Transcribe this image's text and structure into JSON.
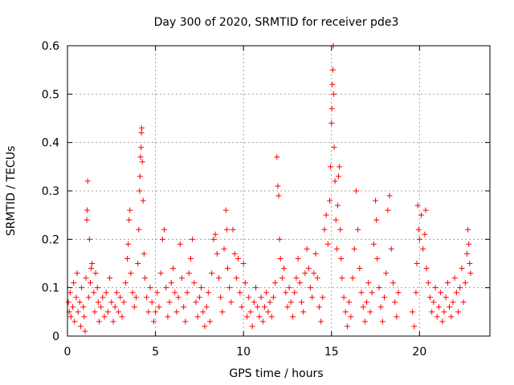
{
  "chart_data": {
    "type": "scatter",
    "title": "Day 300 of 2020, SRMTID for receiver pde3",
    "xlabel": "GPS time / hours",
    "ylabel": "SRMTID / TECUs",
    "xlim": [
      0,
      24
    ],
    "ylim": [
      0,
      0.6
    ],
    "x_ticks": [
      0,
      5,
      10,
      15,
      20
    ],
    "x_tick_labels": [
      "0",
      "5",
      "10",
      "15",
      "20"
    ],
    "y_ticks": [
      0,
      0.1,
      0.2,
      0.3,
      0.4,
      0.5,
      0.6
    ],
    "y_tick_labels": [
      "0",
      "0.1",
      "0.2",
      "0.3",
      "0.4",
      "0.5",
      "0.6"
    ],
    "grid": true,
    "marker": "+",
    "marker_color": "#ff0000",
    "series": [
      {
        "name": "SRMTID",
        "points": [
          [
            0.05,
            0.07
          ],
          [
            0.1,
            0.05
          ],
          [
            0.15,
            0.09
          ],
          [
            0.2,
            0.04
          ],
          [
            0.3,
            0.06
          ],
          [
            0.35,
            0.11
          ],
          [
            0.4,
            0.03
          ],
          [
            0.5,
            0.08
          ],
          [
            0.55,
            0.13
          ],
          [
            0.6,
            0.05
          ],
          [
            0.7,
            0.07
          ],
          [
            0.75,
            0.02
          ],
          [
            0.8,
            0.1
          ],
          [
            0.9,
            0.06
          ],
          [
            0.95,
            0.04
          ],
          [
            1.0,
            0.01
          ],
          [
            1.05,
            0.12
          ],
          [
            1.1,
            0.24
          ],
          [
            1.12,
            0.26
          ],
          [
            1.15,
            0.32
          ],
          [
            1.2,
            0.08
          ],
          [
            1.25,
            0.2
          ],
          [
            1.3,
            0.11
          ],
          [
            1.35,
            0.14
          ],
          [
            1.4,
            0.15
          ],
          [
            1.5,
            0.09
          ],
          [
            1.55,
            0.05
          ],
          [
            1.6,
            0.13
          ],
          [
            1.7,
            0.1
          ],
          [
            1.75,
            0.07
          ],
          [
            1.8,
            0.03
          ],
          [
            1.9,
            0.06
          ],
          [
            2.0,
            0.08
          ],
          [
            2.1,
            0.04
          ],
          [
            2.2,
            0.09
          ],
          [
            2.3,
            0.05
          ],
          [
            2.4,
            0.12
          ],
          [
            2.5,
            0.07
          ],
          [
            2.6,
            0.03
          ],
          [
            2.7,
            0.06
          ],
          [
            2.8,
            0.09
          ],
          [
            2.9,
            0.05
          ],
          [
            3.0,
            0.08
          ],
          [
            3.1,
            0.04
          ],
          [
            3.2,
            0.07
          ],
          [
            3.3,
            0.11
          ],
          [
            3.4,
            0.16
          ],
          [
            3.45,
            0.19
          ],
          [
            3.5,
            0.24
          ],
          [
            3.55,
            0.26
          ],
          [
            3.6,
            0.13
          ],
          [
            3.7,
            0.09
          ],
          [
            3.8,
            0.06
          ],
          [
            3.9,
            0.08
          ],
          [
            4.0,
            0.15
          ],
          [
            4.05,
            0.22
          ],
          [
            4.1,
            0.3
          ],
          [
            4.12,
            0.33
          ],
          [
            4.15,
            0.37
          ],
          [
            4.18,
            0.39
          ],
          [
            4.2,
            0.42
          ],
          [
            4.22,
            0.43
          ],
          [
            4.25,
            0.36
          ],
          [
            4.3,
            0.28
          ],
          [
            4.35,
            0.17
          ],
          [
            4.4,
            0.12
          ],
          [
            4.5,
            0.08
          ],
          [
            4.6,
            0.05
          ],
          [
            4.7,
            0.1
          ],
          [
            4.8,
            0.07
          ],
          [
            4.9,
            0.03
          ],
          [
            5.0,
            0.05
          ],
          [
            5.1,
            0.09
          ],
          [
            5.2,
            0.06
          ],
          [
            5.3,
            0.13
          ],
          [
            5.4,
            0.2
          ],
          [
            5.5,
            0.22
          ],
          [
            5.6,
            0.1
          ],
          [
            5.7,
            0.04
          ],
          [
            5.8,
            0.07
          ],
          [
            5.9,
            0.11
          ],
          [
            6.0,
            0.14
          ],
          [
            6.1,
            0.09
          ],
          [
            6.2,
            0.05
          ],
          [
            6.3,
            0.08
          ],
          [
            6.4,
            0.19
          ],
          [
            6.5,
            0.12
          ],
          [
            6.6,
            0.06
          ],
          [
            6.7,
            0.03
          ],
          [
            6.8,
            0.09
          ],
          [
            6.9,
            0.13
          ],
          [
            7.0,
            0.16
          ],
          [
            7.1,
            0.2
          ],
          [
            7.2,
            0.11
          ],
          [
            7.3,
            0.07
          ],
          [
            7.4,
            0.04
          ],
          [
            7.5,
            0.08
          ],
          [
            7.6,
            0.1
          ],
          [
            7.7,
            0.05
          ],
          [
            7.8,
            0.02
          ],
          [
            7.9,
            0.06
          ],
          [
            8.0,
            0.09
          ],
          [
            8.1,
            0.03
          ],
          [
            8.2,
            0.13
          ],
          [
            8.3,
            0.2
          ],
          [
            8.4,
            0.21
          ],
          [
            8.5,
            0.17
          ],
          [
            8.6,
            0.12
          ],
          [
            8.7,
            0.08
          ],
          [
            8.8,
            0.05
          ],
          [
            8.9,
            0.18
          ],
          [
            9.0,
            0.26
          ],
          [
            9.05,
            0.22
          ],
          [
            9.1,
            0.14
          ],
          [
            9.2,
            0.1
          ],
          [
            9.3,
            0.07
          ],
          [
            9.4,
            0.22
          ],
          [
            9.5,
            0.17
          ],
          [
            9.6,
            0.12
          ],
          [
            9.7,
            0.16
          ],
          [
            9.8,
            0.09
          ],
          [
            9.9,
            0.06
          ],
          [
            10.0,
            0.15
          ],
          [
            10.1,
            0.11
          ],
          [
            10.2,
            0.04
          ],
          [
            10.3,
            0.08
          ],
          [
            10.4,
            0.05
          ],
          [
            10.5,
            0.02
          ],
          [
            10.6,
            0.07
          ],
          [
            10.7,
            0.1
          ],
          [
            10.8,
            0.06
          ],
          [
            10.9,
            0.04
          ],
          [
            11.0,
            0.08
          ],
          [
            11.1,
            0.03
          ],
          [
            11.2,
            0.06
          ],
          [
            11.3,
            0.09
          ],
          [
            11.4,
            0.05
          ],
          [
            11.5,
            0.07
          ],
          [
            11.6,
            0.04
          ],
          [
            11.7,
            0.08
          ],
          [
            11.8,
            0.11
          ],
          [
            11.9,
            0.37
          ],
          [
            11.95,
            0.31
          ],
          [
            12.0,
            0.29
          ],
          [
            12.05,
            0.2
          ],
          [
            12.1,
            0.16
          ],
          [
            12.2,
            0.12
          ],
          [
            12.3,
            0.14
          ],
          [
            12.4,
            0.09
          ],
          [
            12.5,
            0.06
          ],
          [
            12.6,
            0.1
          ],
          [
            12.7,
            0.07
          ],
          [
            12.8,
            0.04
          ],
          [
            12.9,
            0.09
          ],
          [
            13.0,
            0.12
          ],
          [
            13.1,
            0.16
          ],
          [
            13.2,
            0.11
          ],
          [
            13.3,
            0.07
          ],
          [
            13.4,
            0.05
          ],
          [
            13.5,
            0.13
          ],
          [
            13.6,
            0.18
          ],
          [
            13.7,
            0.14
          ],
          [
            13.8,
            0.1
          ],
          [
            13.9,
            0.08
          ],
          [
            14.0,
            0.13
          ],
          [
            14.1,
            0.17
          ],
          [
            14.2,
            0.12
          ],
          [
            14.3,
            0.06
          ],
          [
            14.4,
            0.03
          ],
          [
            14.5,
            0.08
          ],
          [
            14.6,
            0.22
          ],
          [
            14.7,
            0.25
          ],
          [
            14.8,
            0.19
          ],
          [
            14.9,
            0.28
          ],
          [
            14.95,
            0.35
          ],
          [
            15.0,
            0.44
          ],
          [
            15.02,
            0.47
          ],
          [
            15.05,
            0.52
          ],
          [
            15.08,
            0.55
          ],
          [
            15.1,
            0.6
          ],
          [
            15.12,
            0.5
          ],
          [
            15.15,
            0.39
          ],
          [
            15.2,
            0.32
          ],
          [
            15.25,
            0.24
          ],
          [
            15.3,
            0.18
          ],
          [
            15.35,
            0.27
          ],
          [
            15.4,
            0.33
          ],
          [
            15.45,
            0.35
          ],
          [
            15.5,
            0.22
          ],
          [
            15.55,
            0.16
          ],
          [
            15.6,
            0.12
          ],
          [
            15.7,
            0.08
          ],
          [
            15.8,
            0.05
          ],
          [
            15.9,
            0.02
          ],
          [
            16.0,
            0.07
          ],
          [
            16.1,
            0.04
          ],
          [
            16.2,
            0.12
          ],
          [
            16.3,
            0.18
          ],
          [
            16.4,
            0.3
          ],
          [
            16.5,
            0.22
          ],
          [
            16.6,
            0.14
          ],
          [
            16.7,
            0.09
          ],
          [
            16.8,
            0.06
          ],
          [
            16.9,
            0.03
          ],
          [
            17.0,
            0.07
          ],
          [
            17.1,
            0.11
          ],
          [
            17.2,
            0.05
          ],
          [
            17.3,
            0.09
          ],
          [
            17.4,
            0.19
          ],
          [
            17.5,
            0.28
          ],
          [
            17.55,
            0.24
          ],
          [
            17.6,
            0.16
          ],
          [
            17.7,
            0.1
          ],
          [
            17.8,
            0.06
          ],
          [
            17.9,
            0.03
          ],
          [
            18.0,
            0.08
          ],
          [
            18.1,
            0.13
          ],
          [
            18.2,
            0.26
          ],
          [
            18.3,
            0.29
          ],
          [
            18.4,
            0.18
          ],
          [
            18.5,
            0.11
          ],
          [
            18.6,
            0.07
          ],
          [
            18.7,
            0.04
          ],
          [
            18.8,
            0.09
          ],
          [
            19.6,
            0.05
          ],
          [
            19.7,
            0.02
          ],
          [
            19.8,
            0.09
          ],
          [
            19.85,
            0.15
          ],
          [
            19.9,
            0.27
          ],
          [
            19.95,
            0.22
          ],
          [
            20.0,
            0.2
          ],
          [
            20.1,
            0.25
          ],
          [
            20.2,
            0.18
          ],
          [
            20.3,
            0.21
          ],
          [
            20.35,
            0.26
          ],
          [
            20.4,
            0.14
          ],
          [
            20.5,
            0.11
          ],
          [
            20.6,
            0.08
          ],
          [
            20.7,
            0.05
          ],
          [
            20.8,
            0.07
          ],
          [
            20.9,
            0.1
          ],
          [
            21.0,
            0.04
          ],
          [
            21.1,
            0.06
          ],
          [
            21.2,
            0.09
          ],
          [
            21.3,
            0.03
          ],
          [
            21.4,
            0.05
          ],
          [
            21.5,
            0.08
          ],
          [
            21.6,
            0.11
          ],
          [
            21.7,
            0.06
          ],
          [
            21.8,
            0.04
          ],
          [
            21.9,
            0.07
          ],
          [
            22.0,
            0.12
          ],
          [
            22.1,
            0.09
          ],
          [
            22.2,
            0.05
          ],
          [
            22.3,
            0.1
          ],
          [
            22.4,
            0.14
          ],
          [
            22.5,
            0.07
          ],
          [
            22.6,
            0.11
          ],
          [
            22.7,
            0.17
          ],
          [
            22.75,
            0.22
          ],
          [
            22.8,
            0.19
          ],
          [
            22.85,
            0.15
          ],
          [
            22.9,
            0.13
          ]
        ]
      }
    ]
  }
}
